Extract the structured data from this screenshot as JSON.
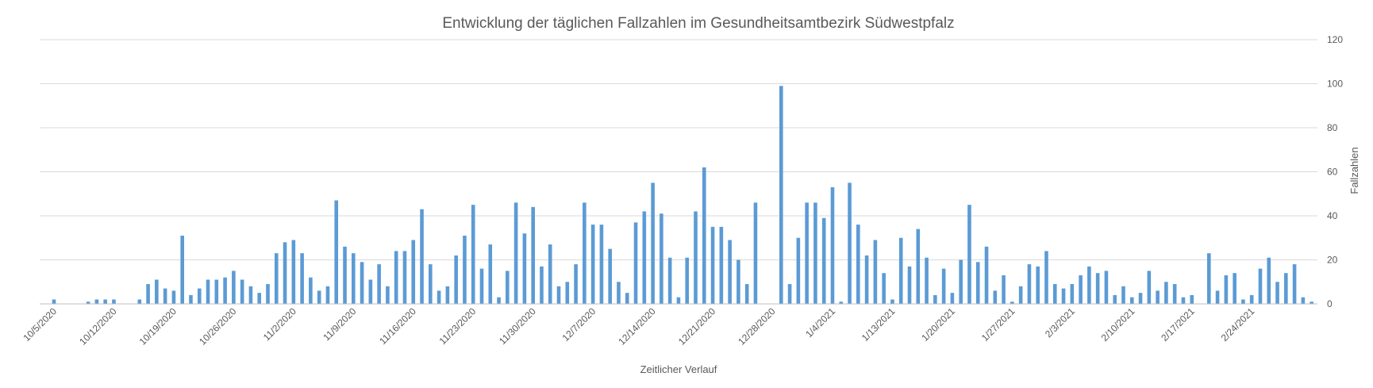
{
  "chart_data": {
    "type": "bar",
    "title": "Entwicklung der täglichen Fallzahlen im Gesundheitsamtbezirk Südwestpfalz",
    "xlabel": "Zeitlicher Verlauf",
    "ylabel": "Fallzahlen",
    "ylim": [
      0,
      120
    ],
    "yticks": [
      0,
      20,
      40,
      60,
      80,
      100,
      120
    ],
    "y_axis_side": "right",
    "grid": true,
    "legend": "none",
    "color": "#5b9bd5",
    "x_tick_labels": [
      "10/5/2020",
      "10/12/2020",
      "10/19/2020",
      "10/26/2020",
      "11/2/2020",
      "11/9/2020",
      "11/16/2020",
      "11/23/2020",
      "11/30/2020",
      "12/7/2020",
      "12/14/2020",
      "12/21/2020",
      "12/28/2020",
      "1/4/2021",
      "1/13/2021",
      "1/20/2021",
      "1/27/2021",
      "2/3/2021",
      "2/10/2021",
      "2/17/2021",
      "2/24/2021"
    ],
    "x_tick_positions": [
      0,
      7,
      14,
      21,
      28,
      35,
      42,
      49,
      56,
      63,
      70,
      77,
      84,
      91,
      98,
      105,
      112,
      119,
      126,
      133,
      140
    ],
    "values": [
      2,
      0,
      0,
      0,
      1,
      2,
      2,
      2,
      0,
      0,
      2,
      9,
      11,
      7,
      6,
      31,
      4,
      7,
      11,
      11,
      12,
      15,
      11,
      8,
      5,
      9,
      23,
      28,
      29,
      23,
      12,
      6,
      8,
      47,
      26,
      23,
      19,
      11,
      18,
      8,
      24,
      24,
      29,
      43,
      18,
      6,
      8,
      22,
      31,
      45,
      16,
      27,
      3,
      15,
      46,
      32,
      44,
      17,
      27,
      8,
      10,
      18,
      46,
      36,
      36,
      25,
      10,
      5,
      37,
      42,
      55,
      41,
      21,
      3,
      21,
      42,
      62,
      35,
      35,
      29,
      20,
      9,
      46,
      0,
      0,
      99,
      9,
      30,
      46,
      46,
      39,
      53,
      1,
      55,
      36,
      22,
      29,
      14,
      2,
      30,
      17,
      34,
      21,
      4,
      16,
      5,
      20,
      45,
      19,
      26,
      6,
      13,
      1,
      8,
      18,
      17,
      24,
      9,
      7,
      9,
      13,
      17,
      14,
      15,
      4,
      8,
      3,
      5,
      15,
      6,
      10,
      9,
      3,
      4,
      0,
      23,
      6,
      13,
      14,
      2,
      4,
      16,
      21,
      10,
      14,
      18,
      3,
      1
    ]
  }
}
